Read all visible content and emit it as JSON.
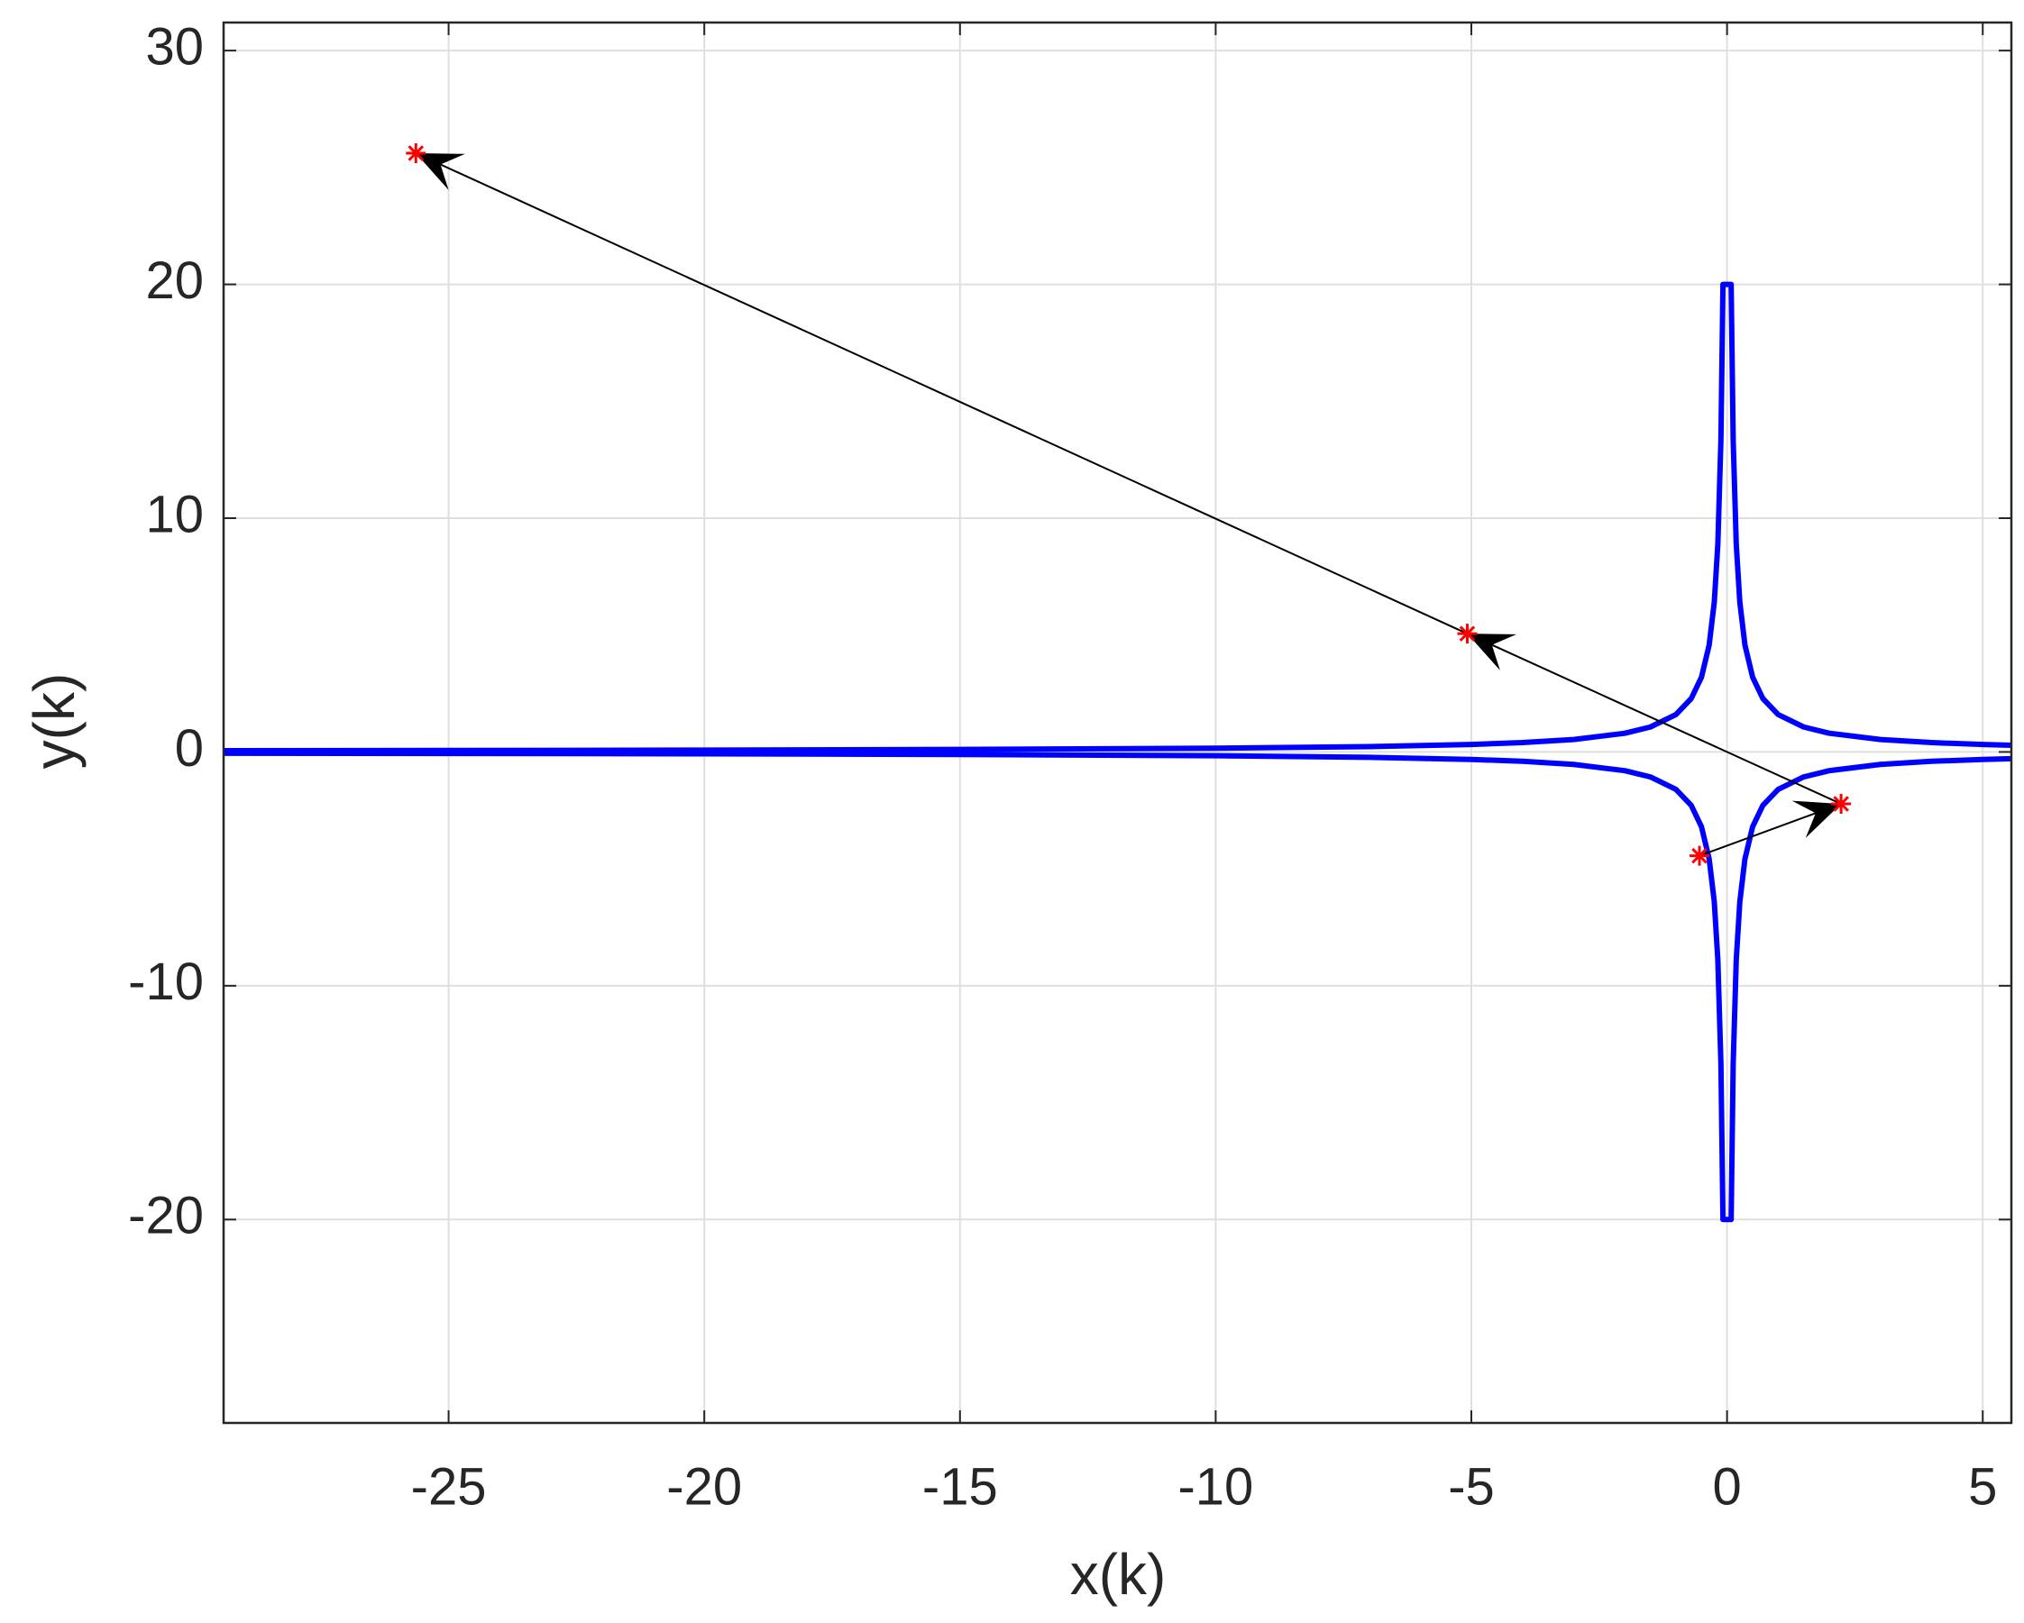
{
  "chart_data": {
    "type": "line",
    "xlabel": "x(k)",
    "ylabel": "y(k)",
    "xlim": [
      -29.4,
      5.56
    ],
    "ylim": [
      -28.7,
      31.2
    ],
    "xticks": [
      -25,
      -20,
      -15,
      -10,
      -5,
      0,
      5
    ],
    "yticks": [
      -20,
      -10,
      0,
      10,
      20,
      30
    ],
    "grid": true,
    "series": [
      {
        "color": "#0000ff",
        "x": [
          -29.4,
          -25,
          -20,
          -15,
          -10,
          -7,
          -5,
          -4,
          -3,
          -2,
          -1.5,
          -1,
          -0.7,
          -0.5,
          -0.35,
          -0.25,
          -0.18,
          -0.12,
          -0.08,
          0.08,
          0.12,
          0.18,
          0.25,
          0.35,
          0.5,
          0.7,
          1,
          1.5,
          2,
          3,
          4,
          5,
          5.56
        ],
        "values": [
          0.054,
          0.064,
          0.08,
          0.107,
          0.16,
          0.229,
          0.32,
          0.4,
          0.533,
          0.8,
          1.067,
          1.6,
          2.286,
          3.2,
          4.571,
          6.4,
          8.889,
          13.333,
          20,
          20,
          13.333,
          8.889,
          6.4,
          4.571,
          3.2,
          2.286,
          1.6,
          1.067,
          0.8,
          0.533,
          0.4,
          0.32,
          0.288
        ]
      },
      {
        "color": "#0000ff",
        "x": [
          -29.4,
          -25,
          -20,
          -15,
          -10,
          -7,
          -5,
          -4,
          -3,
          -2,
          -1.5,
          -1,
          -0.7,
          -0.5,
          -0.35,
          -0.25,
          -0.18,
          -0.12,
          -0.08,
          0.08,
          0.12,
          0.18,
          0.25,
          0.35,
          0.5,
          0.7,
          1,
          1.5,
          2,
          3,
          4,
          5,
          5.56
        ],
        "values": [
          -0.054,
          -0.064,
          -0.08,
          -0.107,
          -0.16,
          -0.229,
          -0.32,
          -0.4,
          -0.533,
          -0.8,
          -1.067,
          -1.6,
          -2.286,
          -3.2,
          -4.571,
          -6.4,
          -8.889,
          -13.333,
          -20,
          -20,
          -13.333,
          -8.889,
          -6.4,
          -4.571,
          -3.2,
          -2.286,
          -1.6,
          -1.067,
          -0.8,
          -0.533,
          -0.4,
          -0.32,
          -0.288
        ]
      },
      {
        "color": "#ff0000",
        "marker": "asterisk",
        "arrows": true,
        "arrow_color": "#000000",
        "x": [
          -0.54,
          2.23,
          -5.08,
          -25.64
        ],
        "values": [
          -4.44,
          -2.22,
          5.06,
          25.61
        ]
      }
    ]
  }
}
